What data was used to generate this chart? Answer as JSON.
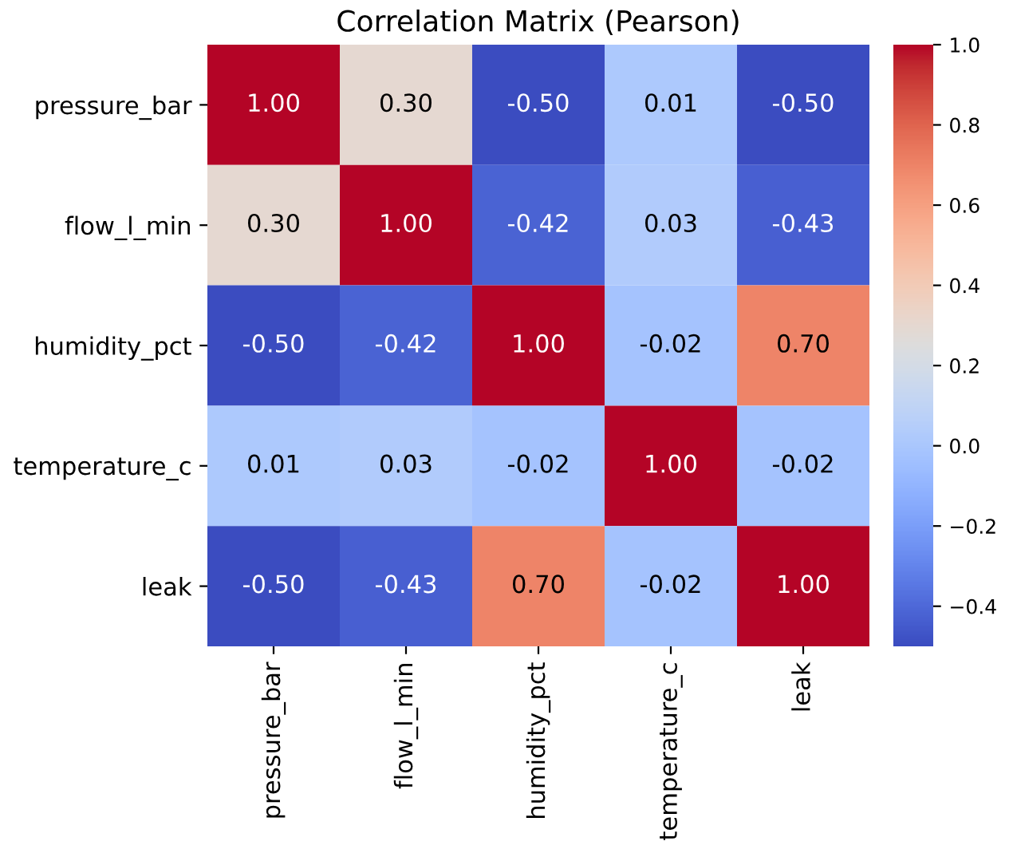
{
  "chart_data": {
    "type": "heatmap",
    "title": "Correlation Matrix (Pearson)",
    "categories": [
      "pressure_bar",
      "flow_l_min",
      "humidity_pct",
      "temperature_c",
      "leak"
    ],
    "y_categories": [
      "pressure_bar",
      "flow_l_min",
      "humidity_pct",
      "temperature_c",
      "leak"
    ],
    "cells": [
      [
        1.0,
        0.3,
        -0.5,
        0.01,
        -0.5
      ],
      [
        0.3,
        1.0,
        -0.42,
        0.03,
        -0.43
      ],
      [
        -0.5,
        -0.42,
        1.0,
        -0.02,
        0.7
      ],
      [
        0.01,
        0.03,
        -0.02,
        1.0,
        -0.02
      ],
      [
        -0.5,
        -0.43,
        0.7,
        -0.02,
        1.0
      ]
    ],
    "cell_labels": [
      [
        "1.00",
        "0.30",
        "-0.50",
        "0.01",
        "-0.50"
      ],
      [
        "0.30",
        "1.00",
        "-0.42",
        "0.03",
        "-0.43"
      ],
      [
        "-0.50",
        "-0.42",
        "1.00",
        "-0.02",
        "0.70"
      ],
      [
        "0.01",
        "0.03",
        "-0.02",
        "1.00",
        "-0.02"
      ],
      [
        "-0.50",
        "-0.43",
        "0.70",
        "-0.02",
        "1.00"
      ]
    ],
    "clim": [
      -0.5,
      1.0
    ],
    "cticks": [
      {
        "value": -0.4,
        "label": "−0.4"
      },
      {
        "value": -0.2,
        "label": "−0.2"
      },
      {
        "value": 0.0,
        "label": "0.0"
      },
      0.2,
      0.4,
      0.6,
      0.8,
      {
        "value": 1.0,
        "label": "1.0"
      }
    ]
  }
}
